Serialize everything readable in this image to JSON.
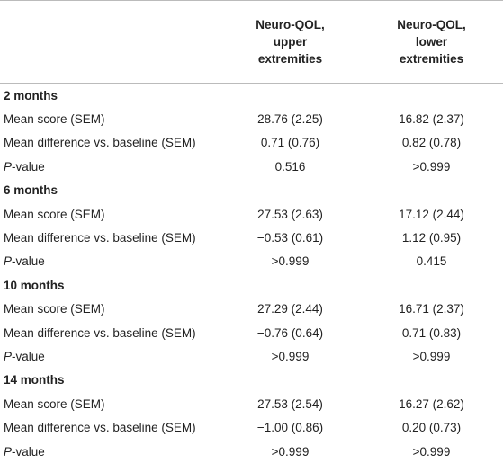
{
  "table": {
    "columns": [
      "Neuro-QOL, upper extremities",
      "Neuro-QOL, lower extremities"
    ],
    "sections": [
      {
        "label": "2 months",
        "rows": [
          [
            "Mean score (SEM)",
            "28.76 (2.25)",
            "16.82 (2.37)"
          ],
          [
            "Mean difference vs. baseline (SEM)",
            "0.71 (0.76)",
            "0.82 (0.78)"
          ],
          [
            "P-value",
            "0.516",
            ">0.999"
          ]
        ]
      },
      {
        "label": "6 months",
        "rows": [
          [
            "Mean score (SEM)",
            "27.53 (2.63)",
            "17.12 (2.44)"
          ],
          [
            "Mean difference vs. baseline (SEM)",
            "−0.53 (0.61)",
            "1.12 (0.95)"
          ],
          [
            "P-value",
            ">0.999",
            "0.415"
          ]
        ]
      },
      {
        "label": "10 months",
        "rows": [
          [
            "Mean score (SEM)",
            "27.29 (2.44)",
            "16.71 (2.37)"
          ],
          [
            "Mean difference vs. baseline (SEM)",
            "−0.76 (0.64)",
            "0.71 (0.83)"
          ],
          [
            "P-value",
            ">0.999",
            ">0.999"
          ]
        ]
      },
      {
        "label": "14 months",
        "rows": [
          [
            "Mean score (SEM)",
            "27.53 (2.54)",
            "16.27 (2.62)"
          ],
          [
            "Mean difference vs. baseline (SEM)",
            "−1.00 (0.86)",
            "0.20 (0.73)"
          ],
          [
            "P-value",
            ">0.999",
            ">0.999"
          ]
        ]
      }
    ]
  }
}
